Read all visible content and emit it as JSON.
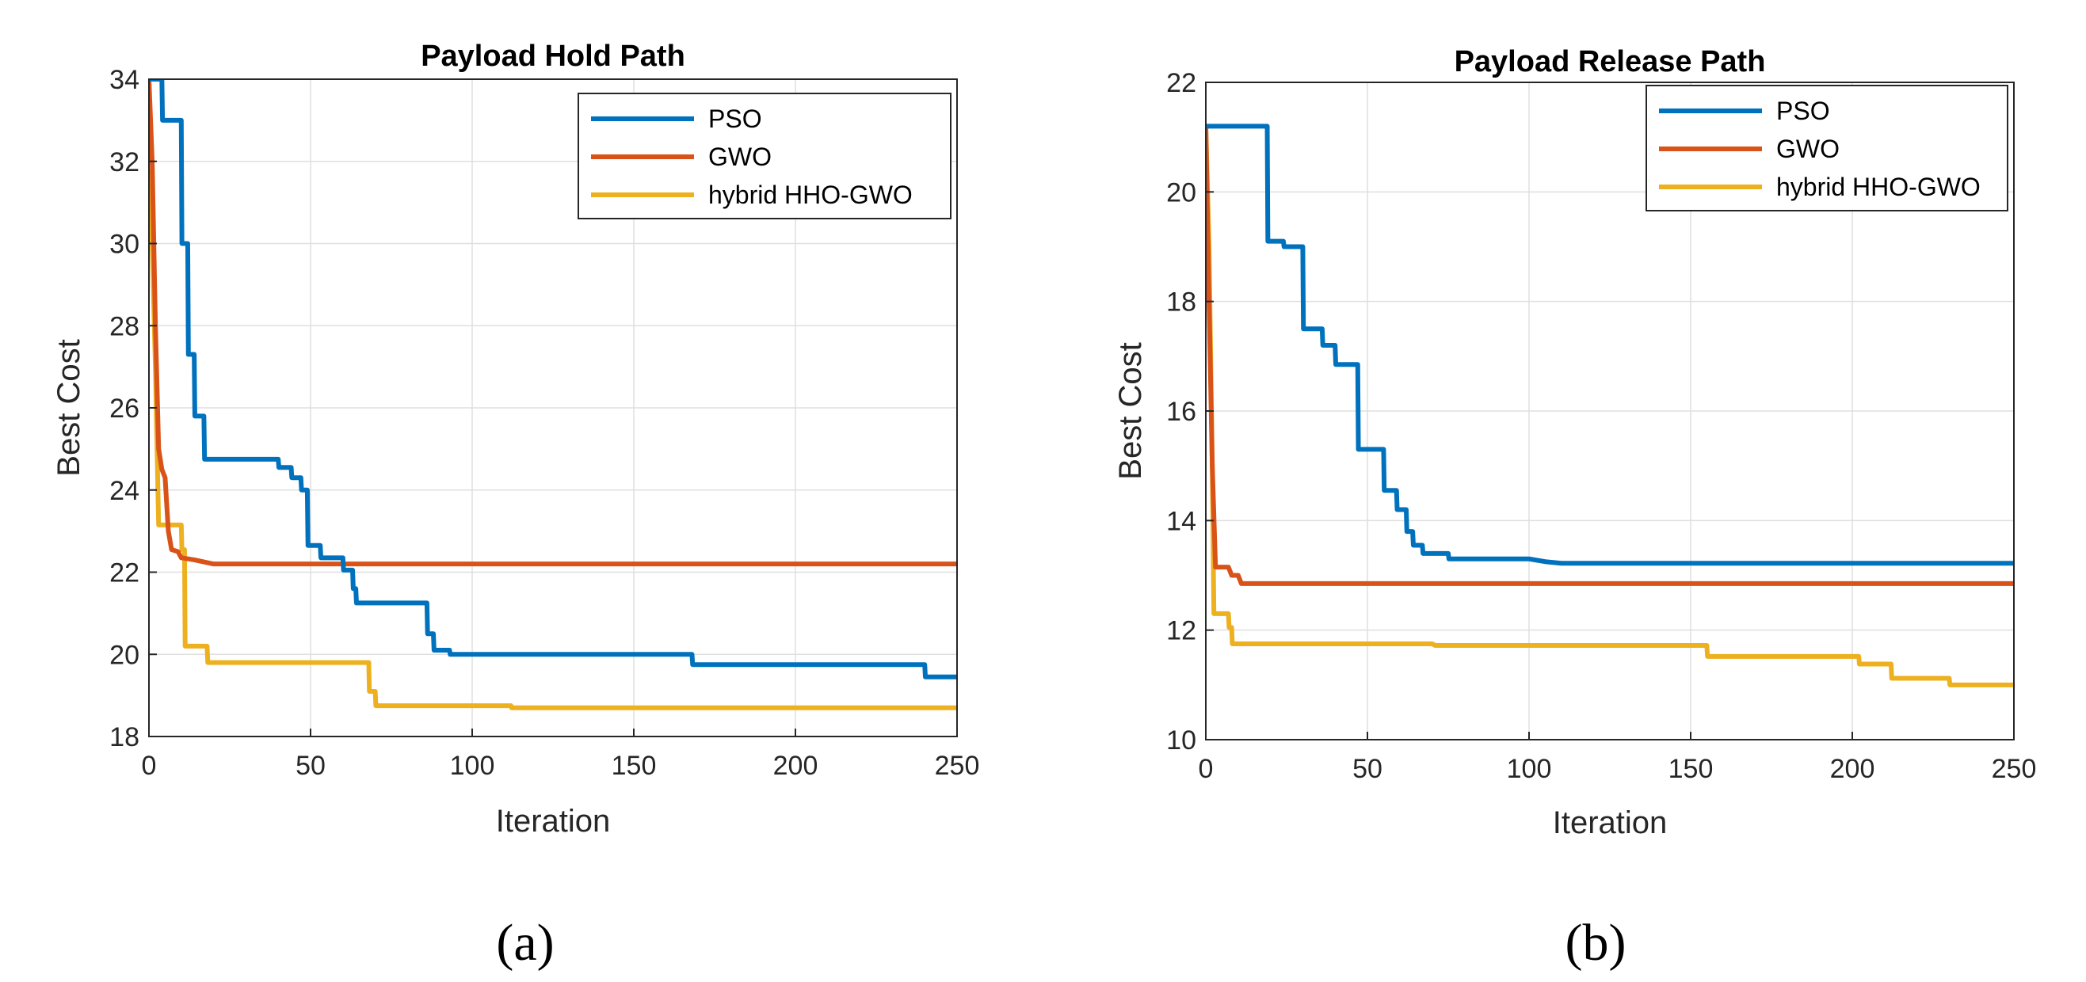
{
  "chart_data": [
    {
      "type": "line",
      "title": "Payload Hold Path",
      "xlabel": "Iteration",
      "ylabel": "Best Cost",
      "sublabel": "(a)",
      "xlim": [
        0,
        250
      ],
      "ylim": [
        18,
        34
      ],
      "xticks": [
        0,
        50,
        100,
        150,
        200,
        250
      ],
      "yticks": [
        18,
        20,
        22,
        24,
        26,
        28,
        30,
        32,
        34
      ],
      "grid": true,
      "legend_position": "top-right",
      "series": [
        {
          "name": "PSO",
          "color": "#0072BD",
          "points": [
            [
              0,
              34
            ],
            [
              4,
              34
            ],
            [
              4.2,
              33
            ],
            [
              10,
              33
            ],
            [
              10.2,
              30
            ],
            [
              12,
              30
            ],
            [
              12.2,
              27.3
            ],
            [
              14,
              27.3
            ],
            [
              14.2,
              25.8
            ],
            [
              17,
              25.8
            ],
            [
              17.2,
              24.75
            ],
            [
              40,
              24.75
            ],
            [
              40.2,
              24.55
            ],
            [
              44,
              24.55
            ],
            [
              44.2,
              24.3
            ],
            [
              47,
              24.3
            ],
            [
              47.2,
              24
            ],
            [
              49,
              24
            ],
            [
              49.2,
              22.65
            ],
            [
              53,
              22.65
            ],
            [
              53.2,
              22.35
            ],
            [
              60,
              22.35
            ],
            [
              60.2,
              22.05
            ],
            [
              63,
              22.05
            ],
            [
              63.2,
              21.6
            ],
            [
              64,
              21.6
            ],
            [
              64.2,
              21.25
            ],
            [
              86,
              21.25
            ],
            [
              86.2,
              20.5
            ],
            [
              88,
              20.5
            ],
            [
              88.2,
              20.1
            ],
            [
              93,
              20.1
            ],
            [
              93.2,
              20
            ],
            [
              168,
              20
            ],
            [
              168.2,
              19.75
            ],
            [
              240,
              19.75
            ],
            [
              240.2,
              19.45
            ],
            [
              250,
              19.45
            ]
          ]
        },
        {
          "name": "GWO",
          "color": "#D95319",
          "points": [
            [
              0,
              34
            ],
            [
              1,
              32
            ],
            [
              2,
              28
            ],
            [
              3,
              25
            ],
            [
              4,
              24.5
            ],
            [
              5,
              24.3
            ],
            [
              6,
              23
            ],
            [
              7,
              22.55
            ],
            [
              9,
              22.5
            ],
            [
              10,
              22.35
            ],
            [
              14,
              22.3
            ],
            [
              20,
              22.2
            ],
            [
              40,
              22.2
            ],
            [
              250,
              22.2
            ]
          ]
        },
        {
          "name": "hybrid HHO-GWO",
          "color": "#EDB120",
          "points": [
            [
              0,
              31.8
            ],
            [
              1,
              30
            ],
            [
              2,
              27
            ],
            [
              3,
              23.15
            ],
            [
              10,
              23.15
            ],
            [
              10.2,
              22.55
            ],
            [
              11,
              22.55
            ],
            [
              11.2,
              20.2
            ],
            [
              18,
              20.2
            ],
            [
              18.2,
              19.8
            ],
            [
              68,
              19.8
            ],
            [
              68.2,
              19.1
            ],
            [
              70,
              19.1
            ],
            [
              70.2,
              18.75
            ],
            [
              112,
              18.75
            ],
            [
              112.2,
              18.7
            ],
            [
              250,
              18.7
            ]
          ]
        }
      ]
    },
    {
      "type": "line",
      "title": "Payload Release Path",
      "xlabel": "Iteration",
      "ylabel": "Best Cost",
      "sublabel": "(b)",
      "xlim": [
        0,
        250
      ],
      "ylim": [
        10,
        22
      ],
      "xticks": [
        0,
        50,
        100,
        150,
        200,
        250
      ],
      "yticks": [
        10,
        12,
        14,
        16,
        18,
        20,
        22
      ],
      "grid": true,
      "legend_position": "top-right",
      "series": [
        {
          "name": "PSO",
          "color": "#0072BD",
          "points": [
            [
              0,
              21.2
            ],
            [
              18,
              21.2
            ],
            [
              19,
              21.2
            ],
            [
              19.2,
              19.1
            ],
            [
              24,
              19.1
            ],
            [
              24.2,
              19
            ],
            [
              30,
              19
            ],
            [
              30.2,
              17.5
            ],
            [
              36,
              17.5
            ],
            [
              36.2,
              17.2
            ],
            [
              40,
              17.2
            ],
            [
              40.2,
              16.85
            ],
            [
              47,
              16.85
            ],
            [
              47.2,
              15.3
            ],
            [
              55,
              15.3
            ],
            [
              55.2,
              14.55
            ],
            [
              59,
              14.55
            ],
            [
              59.2,
              14.2
            ],
            [
              62,
              14.2
            ],
            [
              62.2,
              13.8
            ],
            [
              64,
              13.8
            ],
            [
              64.2,
              13.55
            ],
            [
              67,
              13.55
            ],
            [
              67.2,
              13.4
            ],
            [
              75,
              13.4
            ],
            [
              75.2,
              13.3
            ],
            [
              100,
              13.3
            ],
            [
              105,
              13.25
            ],
            [
              110,
              13.22
            ],
            [
              250,
              13.22
            ]
          ]
        },
        {
          "name": "GWO",
          "color": "#D95319",
          "points": [
            [
              0,
              21.2
            ],
            [
              1,
              18
            ],
            [
              2,
              15
            ],
            [
              3,
              13.15
            ],
            [
              7,
              13.15
            ],
            [
              8,
              13
            ],
            [
              10,
              13
            ],
            [
              11,
              12.85
            ],
            [
              250,
              12.85
            ]
          ]
        },
        {
          "name": "hybrid HHO-GWO",
          "color": "#EDB120",
          "points": [
            [
              0,
              21.2
            ],
            [
              1,
              19
            ],
            [
              2,
              15
            ],
            [
              2.5,
              12.3
            ],
            [
              7,
              12.3
            ],
            [
              7.2,
              12.05
            ],
            [
              8,
              12.05
            ],
            [
              8.2,
              11.75
            ],
            [
              70,
              11.75
            ],
            [
              71,
              11.72
            ],
            [
              155,
              11.72
            ],
            [
              155.2,
              11.52
            ],
            [
              202,
              11.52
            ],
            [
              202.2,
              11.38
            ],
            [
              212,
              11.38
            ],
            [
              212.2,
              11.12
            ],
            [
              230,
              11.12
            ],
            [
              230.2,
              11
            ],
            [
              250,
              11
            ]
          ]
        }
      ]
    }
  ]
}
